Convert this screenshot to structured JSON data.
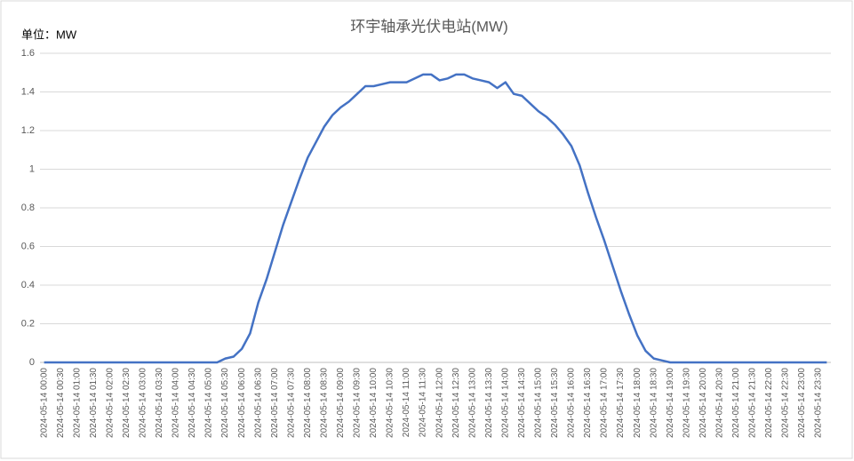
{
  "chart_data": {
    "type": "line",
    "title": "环宇轴承光伏电站(MW)",
    "unit_label": "单位：MW",
    "categories": [
      "2024-05-14 00:00",
      null,
      "2024-05-14 00:30",
      null,
      "2024-05-14 01:00",
      null,
      "2024-05-14 01:30",
      null,
      "2024-05-14 02:00",
      null,
      "2024-05-14 02:30",
      null,
      "2024-05-14 03:00",
      null,
      "2024-05-14 03:30",
      null,
      "2024-05-14 04:00",
      null,
      "2024-05-14 04:30",
      null,
      "2024-05-14 05:00",
      null,
      "2024-05-14 05:30",
      null,
      "2024-05-14 06:00",
      null,
      "2024-05-14 06:30",
      null,
      "2024-05-14 07:00",
      null,
      "2024-05-14 07:30",
      null,
      "2024-05-14 08:00",
      null,
      "2024-05-14 08:30",
      null,
      "2024-05-14 09:00",
      null,
      "2024-05-14 09:30",
      null,
      "2024-05-14 10:00",
      null,
      "2024-05-14 10:30",
      null,
      "2024-05-14 11:00",
      null,
      "2024-05-14 11:30",
      null,
      "2024-05-14 12:00",
      null,
      "2024-05-14 12:30",
      null,
      "2024-05-14 13:00",
      null,
      "2024-05-14 13:30",
      null,
      "2024-05-14 14:00",
      null,
      "2024-05-14 14:30",
      null,
      "2024-05-14 15:00",
      null,
      "2024-05-14 15:30",
      null,
      "2024-05-14 16:00",
      null,
      "2024-05-14 16:30",
      null,
      "2024-05-14 17:00",
      null,
      "2024-05-14 17:30",
      null,
      "2024-05-14 18:00",
      null,
      "2024-05-14 18:30",
      null,
      "2024-05-14 19:00",
      null,
      "2024-05-14 19:30",
      null,
      "2024-05-14 20:00",
      null,
      "2024-05-14 20:30",
      null,
      "2024-05-14 21:00",
      null,
      "2024-05-14 21:30",
      null,
      "2024-05-14 22:00",
      null,
      "2024-05-14 22:30",
      null,
      "2024-05-14 23:00",
      null,
      "2024-05-14 23:30",
      null
    ],
    "values": [
      0,
      0,
      0,
      0,
      0,
      0,
      0,
      0,
      0,
      0,
      0,
      0,
      0,
      0,
      0,
      0,
      0,
      0,
      0,
      0,
      0,
      0,
      0.02,
      0.03,
      0.07,
      0.15,
      0.31,
      0.43,
      0.57,
      0.71,
      0.83,
      0.95,
      1.06,
      1.14,
      1.22,
      1.28,
      1.32,
      1.35,
      1.39,
      1.43,
      1.43,
      1.44,
      1.45,
      1.45,
      1.45,
      1.47,
      1.49,
      1.49,
      1.46,
      1.47,
      1.49,
      1.49,
      1.47,
      1.46,
      1.45,
      1.42,
      1.45,
      1.39,
      1.38,
      1.34,
      1.3,
      1.27,
      1.23,
      1.18,
      1.12,
      1.02,
      0.88,
      0.75,
      0.63,
      0.5,
      0.37,
      0.25,
      0.14,
      0.06,
      0.02,
      0.01,
      0,
      0,
      0,
      0,
      0,
      0,
      0,
      0,
      0,
      0,
      0,
      0,
      0,
      0,
      0,
      0,
      0,
      0,
      0,
      0
    ],
    "color": "#4472c4",
    "ylim": [
      0,
      1.6
    ],
    "yticks": [
      0,
      0.2,
      0.4,
      0.6,
      0.8,
      1,
      1.2,
      1.4,
      1.6
    ],
    "grid": true
  }
}
